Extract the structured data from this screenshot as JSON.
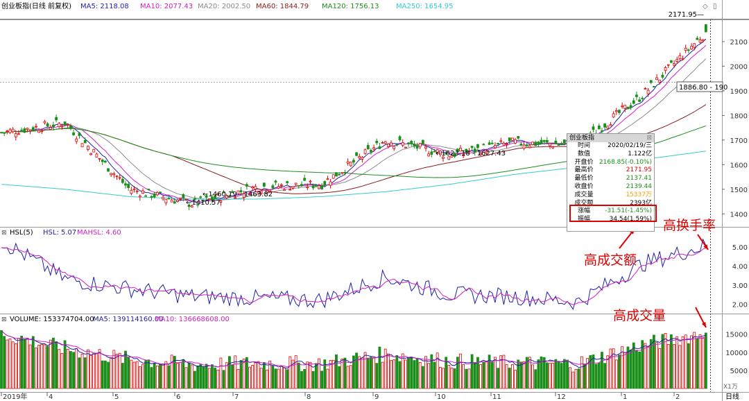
{
  "header": {
    "name": "创业板指(日线 前复权)",
    "ma5": "MA5: 2118.08",
    "ma10": "MA10: 2077.43",
    "ma20": "MA20: 2002.50",
    "ma60": "MA60: 1844.79",
    "ma120": "MA120: 1756.13",
    "ma250": "MA250: 1654.95",
    "colors": {
      "ma5": "#1f1fa8",
      "ma10": "#d020c0",
      "ma20": "#8c8c8c",
      "ma60": "#8b1a1a",
      "ma120": "#1b8f1b",
      "ma250": "#33cccc"
    }
  },
  "price_axis": [
    "2100",
    "2000",
    "1900",
    "1800",
    "1700",
    "1600",
    "1500",
    "1400"
  ],
  "price_labels": {
    "high_label": "2171.95",
    "crosshair_label": "1886.80 - 190",
    "low_1": "1410.57",
    "range_1": "1460.19 - 1463.82",
    "range_2": "1623.18 - 1627.43"
  },
  "hsl_header": {
    "name": "HSL(5)",
    "hsl": "HSL: 5.07",
    "mahsl": "MAHSL: 4.60"
  },
  "hsl_axis": [
    "5.00",
    "4.00",
    "3.00",
    "2.00"
  ],
  "vol_header": {
    "volume": "VOLUME: 153374704.00",
    "ma5": "MA5: 139114160.00",
    "ma10": "MA10: 136668608.00"
  },
  "vol_axis": [
    "15000",
    "10000",
    "5000"
  ],
  "vol_unit": "X1万",
  "x_axis": {
    "labels": [
      "2019年",
      "4",
      "5",
      "6",
      "7",
      "8",
      "9",
      "10",
      "11",
      "12",
      "1",
      "2"
    ],
    "right_label": "日线"
  },
  "popup": {
    "title": "创业板指",
    "rows": [
      {
        "k": "时间",
        "v": "2020/02/19/三"
      },
      {
        "k": "数值",
        "v": "1.122亿"
      },
      {
        "k": "开盘价",
        "v": "2168.85(-0.10%)"
      },
      {
        "k": "最高价",
        "v": "2171.95"
      },
      {
        "k": "最低价",
        "v": "2137.41"
      },
      {
        "k": "收盘价",
        "v": "2139.44"
      },
      {
        "k": "成交量",
        "v": "15337万"
      },
      {
        "k": "成交额",
        "v": "2393亿"
      },
      {
        "k": "涨幅",
        "v": "-31.51(-1.45%)"
      },
      {
        "k": "振幅",
        "v": "34.54(1.59%)"
      }
    ]
  },
  "annotations": {
    "turnover_amount": "高成交额",
    "turnover_rate": "高换手率",
    "volume": "高成交量"
  },
  "chart_data": {
    "type": "line",
    "title": "创业板指(日线 前复权)",
    "x": [
      "2019-03",
      "2019-04",
      "2019-05",
      "2019-06",
      "2019-07",
      "2019-08",
      "2019-09",
      "2019-10",
      "2019-11",
      "2019-12",
      "2020-01",
      "2020-02"
    ],
    "ylim": [
      1350,
      2190
    ],
    "series": [
      {
        "name": "创业板指 收盘",
        "values": [
          1730,
          1770,
          1500,
          1440,
          1510,
          1520,
          1700,
          1640,
          1690,
          1680,
          1880,
          2139
        ]
      },
      {
        "name": "MA250",
        "values": [
          1520,
          1500,
          1470,
          1460,
          1460,
          1470,
          1490,
          1520,
          1560,
          1590,
          1620,
          1655
        ]
      }
    ],
    "hsl": {
      "ylim": [
        1.5,
        5.5
      ],
      "values": [
        5.3,
        3.3,
        2.8,
        2.4,
        2.3,
        2.2,
        3.4,
        2.5,
        2.4,
        2.1,
        4.1,
        5.07
      ]
    },
    "volume": {
      "unit": "X1万",
      "ylim": [
        0,
        18000
      ],
      "values": [
        15000,
        11000,
        8000,
        6500,
        7000,
        6800,
        9500,
        7500,
        7000,
        6800,
        12000,
        15337
      ]
    }
  }
}
